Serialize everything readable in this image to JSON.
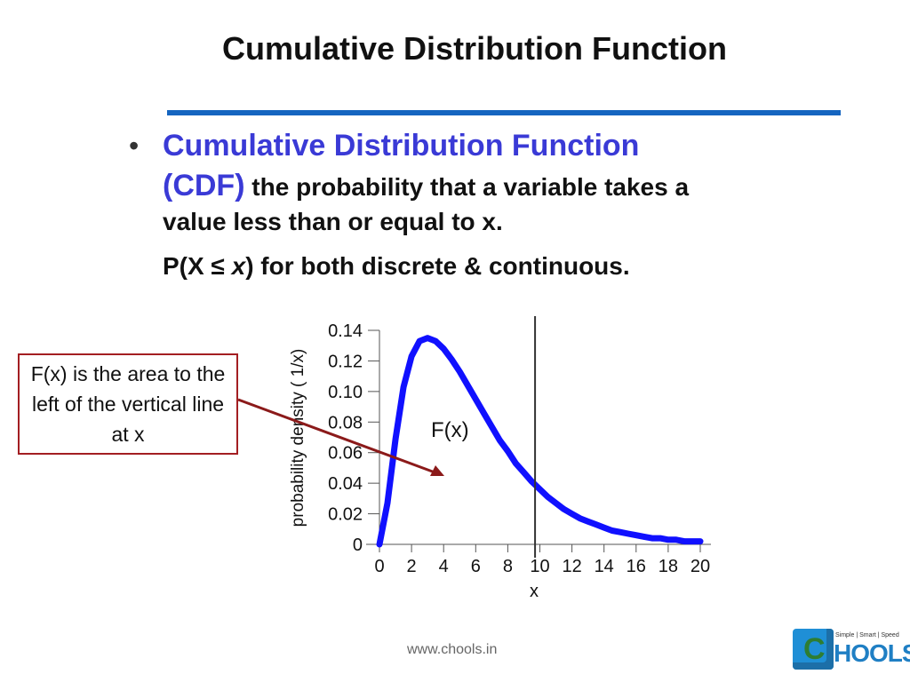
{
  "slide": {
    "title": "Cumulative Distribution Function",
    "bullet_term_1": "Cumulative Distribution Function",
    "bullet_term_2": "(CDF)",
    "bullet_def_1": " the probability that a variable takes a",
    "bullet_def_2": "value less than or equal to x.",
    "formula_prefix": "P(X ≤ ",
    "formula_var": "x",
    "formula_suffix": ") for both discrete & continuous.",
    "callout_text": "F(x) is the area to the left of the vertical line at x",
    "footer_url": "www.chools.in",
    "logo_tagline": "Simple | Smart | Speed",
    "logo_word": "HOOLS",
    "colors": {
      "title_rule": "#1565c0",
      "term": "#3a3ad6",
      "curve": "#1010ff",
      "callout_border": "#a31e22",
      "arrow": "#8b1a1a"
    }
  },
  "chart_data": {
    "type": "line",
    "xlabel": "x",
    "ylabel": "probability density ( 1/x)",
    "xlim": [
      0,
      20
    ],
    "ylim": [
      0,
      0.14
    ],
    "x_ticks": [
      "0",
      "2",
      "4",
      "6",
      "8",
      "10",
      "12",
      "14",
      "16",
      "18",
      "20"
    ],
    "y_ticks": [
      "0",
      "0.02",
      "0.04",
      "0.06",
      "0.08",
      "0.10",
      "0.12",
      "0.14"
    ],
    "vertical_line_x": 9.7,
    "region_label": "F(x)",
    "series": [
      {
        "x": [
          0,
          0.5,
          1,
          1.5,
          2,
          2.5,
          3,
          3.5,
          4,
          4.5,
          5,
          5.5,
          6,
          6.5,
          7,
          7.5,
          8,
          8.5,
          9,
          9.5,
          10,
          10.5,
          11,
          11.5,
          12,
          12.5,
          13,
          13.5,
          14,
          14.5,
          15,
          15.5,
          16,
          16.5,
          17,
          17.5,
          18,
          18.5,
          19,
          19.5,
          20
        ],
        "y": [
          0,
          0.027,
          0.069,
          0.103,
          0.123,
          0.133,
          0.135,
          0.133,
          0.128,
          0.121,
          0.113,
          0.104,
          0.095,
          0.086,
          0.077,
          0.068,
          0.061,
          0.053,
          0.047,
          0.041,
          0.036,
          0.031,
          0.027,
          0.023,
          0.02,
          0.017,
          0.015,
          0.013,
          0.011,
          0.009,
          0.008,
          0.007,
          0.006,
          0.005,
          0.004,
          0.004,
          0.003,
          0.003,
          0.002,
          0.002,
          0.002
        ]
      }
    ]
  }
}
